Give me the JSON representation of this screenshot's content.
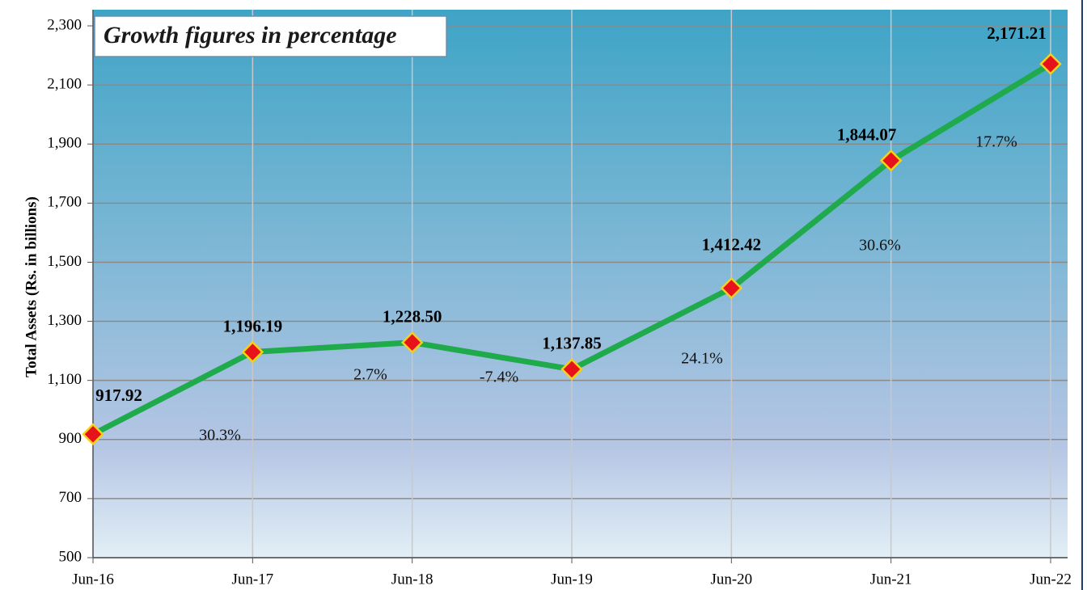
{
  "chart_data": {
    "type": "line",
    "title": "Growth figures in percentage",
    "y_label": "Total Assets (Rs. in billions)",
    "categories": [
      "Jun-16",
      "Jun-17",
      "Jun-18",
      "Jun-19",
      "Jun-20",
      "Jun-21",
      "Jun-22"
    ],
    "series": [
      {
        "name": "Total Assets",
        "color": "#1faa4c",
        "values": [
          917.92,
          1196.19,
          1228.5,
          1137.85,
          1412.42,
          1844.07,
          2171.21
        ],
        "value_labels": [
          "917.92",
          "1,196.19",
          "1,228.50",
          "1,137.85",
          "1,412.42",
          "1,844.07",
          "2,171.21"
        ]
      }
    ],
    "annotations": [
      "30.3%",
      "2.7%",
      "-7.4%",
      "24.1%",
      "30.6%",
      "17.7%"
    ],
    "ylim": [
      500,
      2300
    ],
    "yticks": [
      500,
      700,
      900,
      {
        "value": 1100,
        "label": "1,100"
      },
      {
        "value": 1300,
        "label": "1,300"
      },
      {
        "value": 1500,
        "label": "1,500"
      },
      {
        "value": 1700,
        "label": "1,700"
      },
      {
        "value": 1900,
        "label": "1,900"
      },
      {
        "value": 2100,
        "label": "2,100"
      },
      {
        "value": 2300,
        "label": "2,300"
      }
    ],
    "grid": true
  }
}
